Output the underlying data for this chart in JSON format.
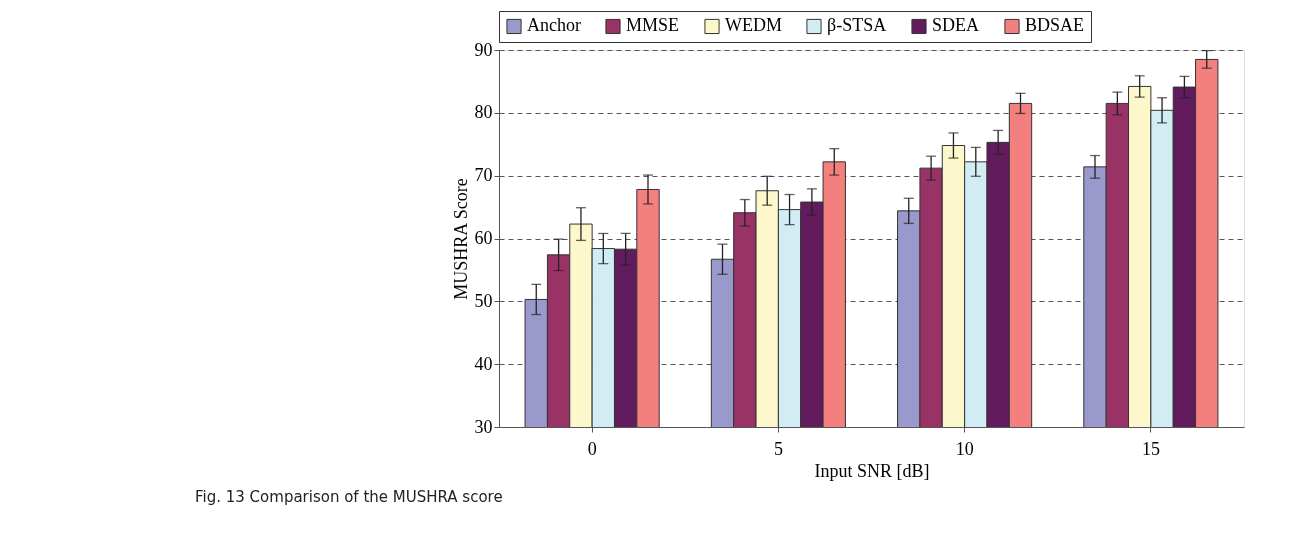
{
  "chart_data": {
    "type": "bar",
    "xlabel": "Input SNR [dB]",
    "ylabel": "MUSHRA Score",
    "categories": [
      "0",
      "5",
      "10",
      "15"
    ],
    "series": [
      {
        "name": "Anchor",
        "color": "#9999cc",
        "values": [
          50.3,
          56.7,
          64.4,
          71.4
        ],
        "errors": [
          2.4,
          2.4,
          2.0,
          1.8
        ]
      },
      {
        "name": "MMSE",
        "color": "#993366",
        "values": [
          57.4,
          64.1,
          71.2,
          81.5
        ],
        "errors": [
          2.5,
          2.1,
          1.9,
          1.8
        ]
      },
      {
        "name": "WEDM",
        "color": "#fcf8cc",
        "values": [
          62.3,
          67.6,
          74.8,
          84.2
        ],
        "errors": [
          2.6,
          2.3,
          2.0,
          1.7
        ]
      },
      {
        "name": "β-STSA",
        "color": "#d2ecf4",
        "values": [
          58.4,
          64.6,
          72.2,
          80.4
        ],
        "errors": [
          2.4,
          2.4,
          2.3,
          2.0
        ]
      },
      {
        "name": "SDEA",
        "color": "#621c5e",
        "values": [
          58.3,
          65.8,
          75.3,
          84.1
        ],
        "errors": [
          2.5,
          2.1,
          1.9,
          1.7
        ]
      },
      {
        "name": "BDSAE",
        "color": "#f47f7f",
        "values": [
          67.8,
          72.2,
          81.5,
          88.5
        ],
        "errors": [
          2.3,
          2.1,
          1.6,
          1.4
        ]
      }
    ],
    "ylim": [
      30,
      90
    ],
    "yticks": [
      30,
      40,
      50,
      60,
      70,
      80,
      90
    ],
    "grid": "y",
    "legend": "top",
    "annotations": [
      "Fig. 13 Comparison of the MUSHRA score"
    ]
  }
}
